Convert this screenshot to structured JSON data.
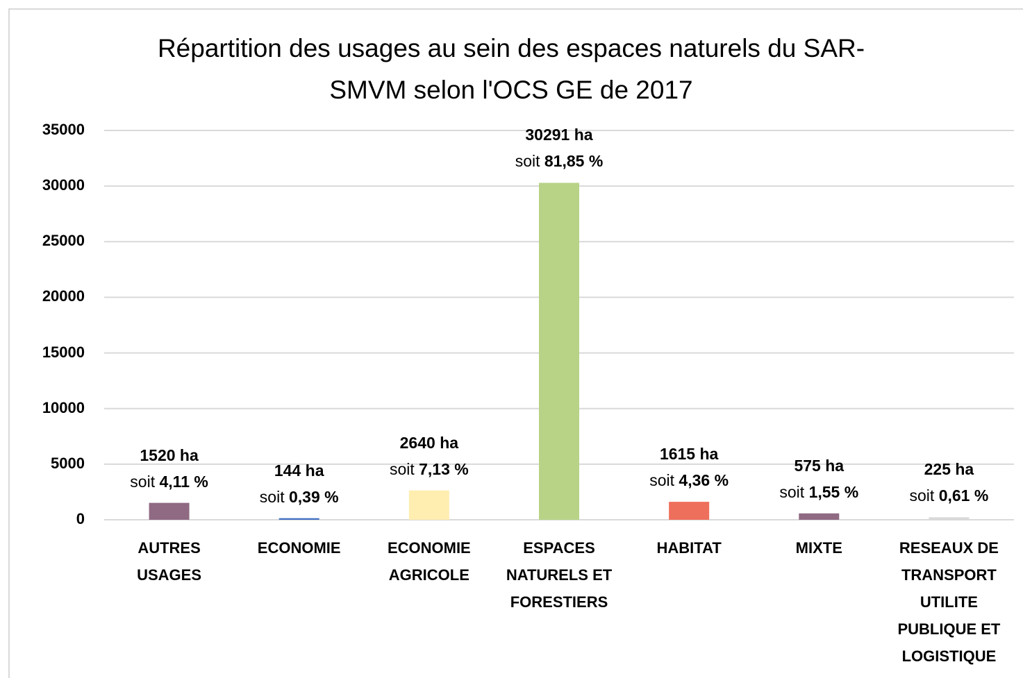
{
  "chart_data": {
    "type": "bar",
    "title": "Répartition des usages au sein des espaces naturels du SAR-SMVM selon l'OCS GE de 2017",
    "categories": [
      "AUTRES USAGES",
      "ECONOMIE",
      "ECONOMIE AGRICOLE",
      "ESPACES NATURELS ET FORESTIERS",
      "HABITAT",
      "MIXTE",
      "RESEAUX DE TRANSPORT UTILITE PUBLIQUE ET LOGISTIQUE"
    ],
    "values": [
      1520,
      144,
      2640,
      30291,
      1615,
      575,
      225
    ],
    "value_labels": [
      "1520 ha",
      "144 ha",
      "2640 ha",
      "30291 ha",
      "1615 ha",
      "575 ha",
      "225 ha"
    ],
    "share_prefix": "soit",
    "share_labels": [
      "4,11 %",
      "0,39 %",
      "7,13 %",
      "81,85 %",
      "4,36 %",
      "1,55 %",
      "0,61 %"
    ],
    "colors": [
      "#8f6a82",
      "#4472c4",
      "#ffeeb0",
      "#b8d386",
      "#ee6f5c",
      "#8f6a82",
      "#d9d9d9"
    ],
    "ylim": [
      0,
      35000
    ],
    "yticks": [
      0,
      5000,
      10000,
      15000,
      20000,
      25000,
      30000,
      35000
    ],
    "grid": true
  }
}
